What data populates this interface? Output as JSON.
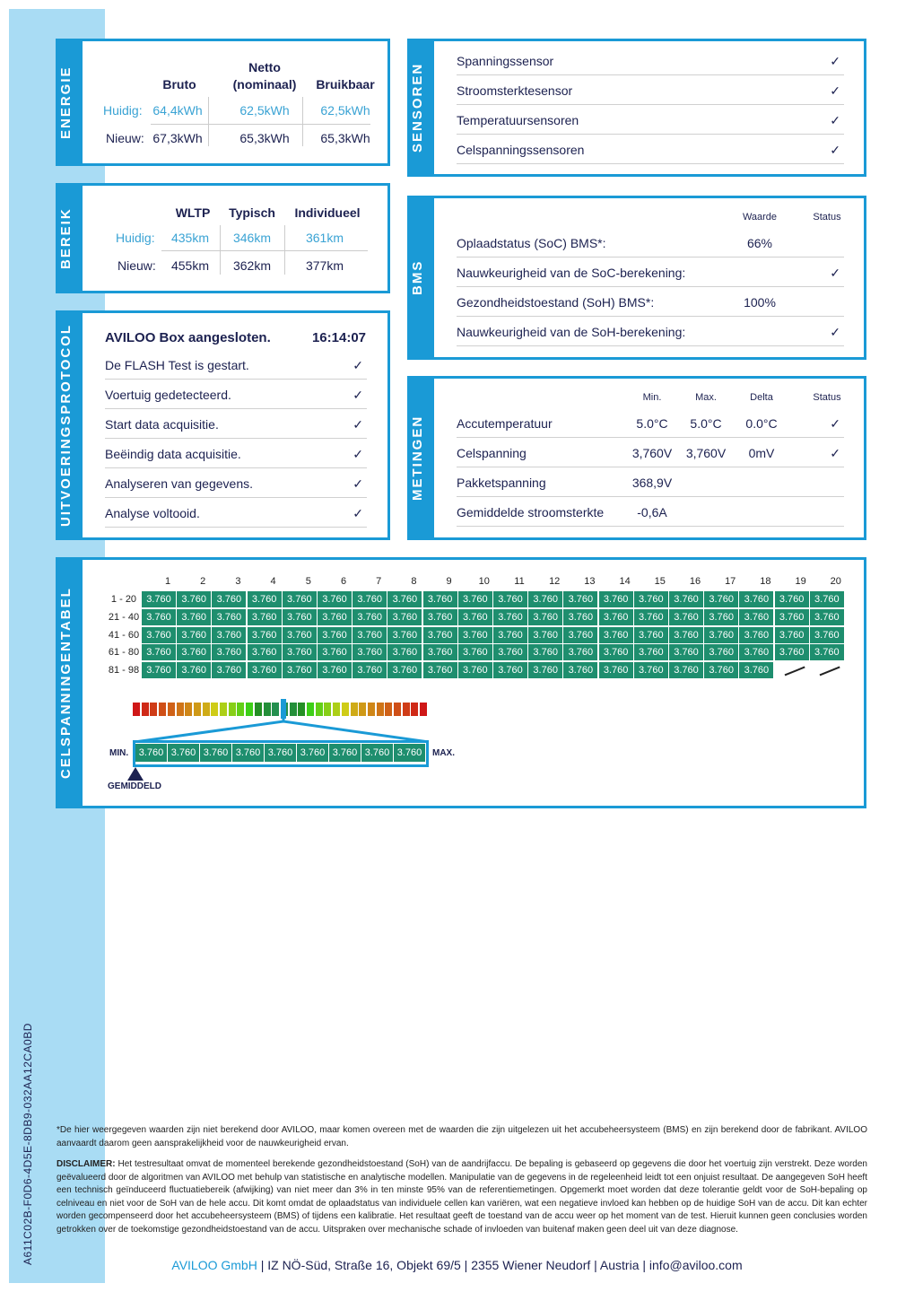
{
  "document_id": "A611C02B-F0D6-4D5E-8DB9-032AA12CA0BD",
  "energie": {
    "title": "ENERGIE",
    "headers": [
      "Bruto",
      "Netto\n(nominaal)",
      "Bruikbaar"
    ],
    "header_netto_1": "Netto",
    "header_netto_2": "(nominaal)",
    "rows": [
      {
        "label": "Huidig:",
        "values": [
          "64,4kWh",
          "62,5kWh",
          "62,5kWh"
        ]
      },
      {
        "label": "Nieuw:",
        "values": [
          "67,3kWh",
          "65,3kWh",
          "65,3kWh"
        ]
      }
    ]
  },
  "bereik": {
    "title": "BEREIK",
    "headers": [
      "WLTP",
      "Typisch",
      "Individueel"
    ],
    "rows": [
      {
        "label": "Huidig:",
        "values": [
          "435km",
          "346km",
          "361km"
        ]
      },
      {
        "label": "Nieuw:",
        "values": [
          "455km",
          "362km",
          "377km"
        ]
      }
    ]
  },
  "protocol": {
    "title": "UITVOERINGSPROTOCOL",
    "heading": "AVILOO Box aangesloten.",
    "time": "16:14:07",
    "items": [
      "De FLASH Test is gestart.",
      "Voertuig gedetecteerd.",
      "Start data acquisitie.",
      "Beëindig data acquisitie.",
      "Analyseren van gegevens.",
      "Analyse voltooid."
    ]
  },
  "sensoren": {
    "title": "SENSOREN",
    "items": [
      "Spanningssensor",
      "Stroomsterktesensor",
      "Temperatuursensoren",
      "Celspanningssensoren"
    ]
  },
  "bms": {
    "title": "BMS",
    "col_value": "Waarde",
    "col_status": "Status",
    "rows": [
      {
        "label": "Oplaadstatus (SoC) BMS*:",
        "value": "66%",
        "check": false
      },
      {
        "label": "Nauwkeurigheid van de SoC-berekening:",
        "value": "",
        "check": true
      },
      {
        "label": "Gezondheidstoestand (SoH) BMS*:",
        "value": "100%",
        "check": false
      },
      {
        "label": "Nauwkeurigheid van de SoH-berekening:",
        "value": "",
        "check": true
      }
    ]
  },
  "metingen": {
    "title": "METINGEN",
    "cols": [
      "Min.",
      "Max.",
      "Delta",
      "Status"
    ],
    "rows": [
      {
        "label": "Accutemperatuur",
        "min": "5.0°C",
        "max": "5.0°C",
        "delta": "0.0°C",
        "check": true
      },
      {
        "label": "Celspanning",
        "min": "3,760V",
        "max": "3,760V",
        "delta": "0mV",
        "check": true
      },
      {
        "label": "Pakketspanning",
        "min": "368,9V",
        "max": "",
        "delta": "",
        "check": false
      },
      {
        "label": "Gemiddelde stroomsterkte",
        "min": "-0,6A",
        "max": "",
        "delta": "",
        "check": false
      }
    ]
  },
  "cells": {
    "title": "CELSPANNINGENTABEL",
    "columns": [
      "1",
      "2",
      "3",
      "4",
      "5",
      "6",
      "7",
      "8",
      "9",
      "10",
      "11",
      "12",
      "13",
      "14",
      "15",
      "16",
      "17",
      "18",
      "19",
      "20"
    ],
    "row_labels": [
      "1 - 20",
      "21 - 40",
      "41 - 60",
      "61 - 80",
      "81 - 98"
    ],
    "rows": [
      [
        "3.760",
        "3.760",
        "3.760",
        "3.760",
        "3.760",
        "3.760",
        "3.760",
        "3.760",
        "3.760",
        "3.760",
        "3.760",
        "3.760",
        "3.760",
        "3.760",
        "3.760",
        "3.760",
        "3.760",
        "3.760",
        "3.760",
        "3.760"
      ],
      [
        "3.760",
        "3.760",
        "3.760",
        "3.760",
        "3.760",
        "3.760",
        "3.760",
        "3.760",
        "3.760",
        "3.760",
        "3.760",
        "3.760",
        "3.760",
        "3.760",
        "3.760",
        "3.760",
        "3.760",
        "3.760",
        "3.760",
        "3.760"
      ],
      [
        "3.760",
        "3.760",
        "3.760",
        "3.760",
        "3.760",
        "3.760",
        "3.760",
        "3.760",
        "3.760",
        "3.760",
        "3.760",
        "3.760",
        "3.760",
        "3.760",
        "3.760",
        "3.760",
        "3.760",
        "3.760",
        "3.760",
        "3.760"
      ],
      [
        "3.760",
        "3.760",
        "3.760",
        "3.760",
        "3.760",
        "3.760",
        "3.760",
        "3.760",
        "3.760",
        "3.760",
        "3.760",
        "3.760",
        "3.760",
        "3.760",
        "3.760",
        "3.760",
        "3.760",
        "3.760",
        "3.760",
        "3.760"
      ],
      [
        "3.760",
        "3.760",
        "3.760",
        "3.760",
        "3.760",
        "3.760",
        "3.760",
        "3.760",
        "3.760",
        "3.760",
        "3.760",
        "3.760",
        "3.760",
        "3.760",
        "3.760",
        "3.760",
        "3.760",
        "3.760"
      ]
    ],
    "zoom_values": [
      "3.760",
      "3.760",
      "3.760",
      "3.760",
      "3.760",
      "3.760",
      "3.760",
      "3.760",
      "3.760"
    ],
    "min_label": "MIN.",
    "max_label": "MAX.",
    "avg_label": "GEMIDDELD",
    "cell_color": "#1e8e6e"
  },
  "footnote": "*De hier weergegeven waarden zijn niet berekend door AVILOO, maar komen overeen met de waarden die zijn uitgelezen uit het accubeheersysteem (BMS) en zijn berekend door de fabrikant. AVILOO aanvaardt daarom geen aansprakelijkheid voor de nauwkeurigheid ervan.",
  "disclaimer_label": "DISCLAIMER:",
  "disclaimer": " Het testresultaat omvat de momenteel berekende gezondheidstoestand (SoH) van de aandrijfaccu. De bepaling is gebaseerd op gegevens die door het voertuig zijn verstrekt. Deze worden geëvalueerd door de algoritmen van AVILOO met behulp van statistische en analytische modellen. Manipulatie van de gegevens in de regeleenheid leidt tot een onjuist resultaat. De aangegeven SoH heeft een technisch geïnduceerd fluctuatiebereik (afwijking) van niet meer dan 3% in ten minste 95% van de referentiemetingen. Opgemerkt moet worden dat deze tolerantie geldt voor de SoH-bepaling op celniveau en niet voor de SoH van de hele accu. Dit komt omdat de oplaadstatus van individuele cellen kan variëren, wat een negatieve invloed kan hebben op de huidige SoH van de accu. Dit kan echter worden gecompenseerd door het accubeheersysteem (BMS) of tijdens een kalibratie. Het resultaat geeft de toestand van de accu weer op het moment van de test. Hieruit kunnen geen conclusies worden getrokken over de toekomstige gezondheidstoestand van de accu. Uitspraken over mechanische schade of invloeden van buitenaf maken geen deel uit van deze diagnose.",
  "footer": {
    "company": "AVILOO GmbH",
    "address": "  |  IZ NÖ-Süd, Straße 16, Objekt 69/5  |  2355 Wiener Neudorf  |  Austria  |  info@aviloo.com"
  },
  "colors": {
    "accent": "#1a9ad6",
    "strip": "#a9dcf4",
    "text": "#1c2150",
    "current": "#3aa3d4"
  },
  "icons": {
    "check": "checkmark-icon",
    "avg_marker": "triangle-up-icon"
  }
}
